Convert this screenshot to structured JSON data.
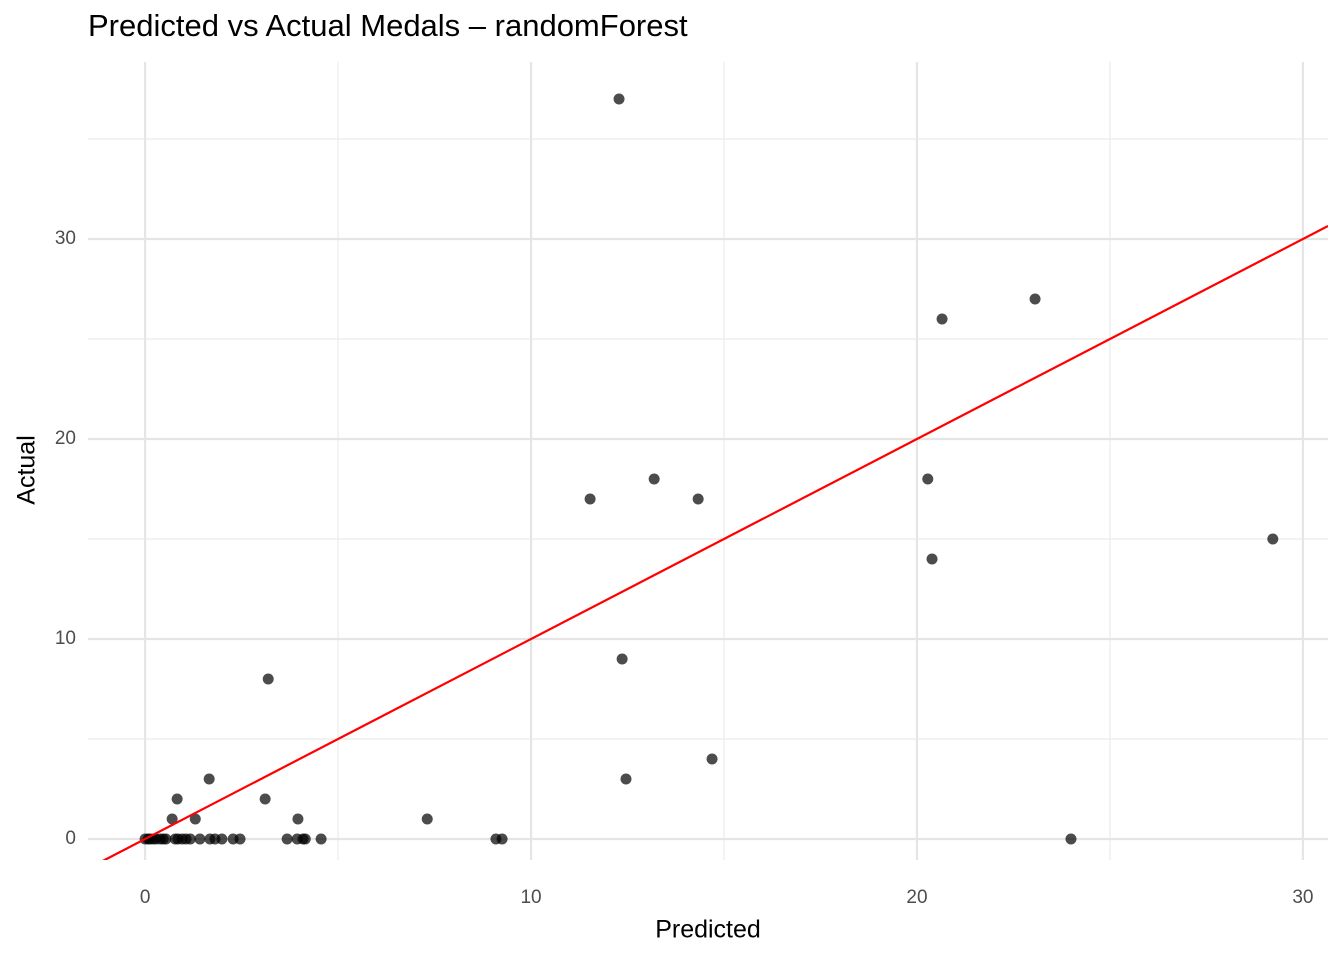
{
  "chart_data": {
    "type": "scatter",
    "title": "Predicted vs Actual Medals – randomForest",
    "x_label": "Predicted",
    "y_label": "Actual",
    "x": [
      12.28,
      23.06,
      20.65,
      13.19,
      11.53,
      14.33,
      20.28,
      20.39,
      29.22,
      12.36,
      3.19,
      14.69,
      12.46,
      1.66,
      3.11,
      0.83,
      0.7,
      1.3,
      3.96,
      7.31,
      0,
      0.08,
      0.13,
      0.21,
      0.28,
      0.39,
      0.47,
      0.54,
      0.78,
      0.85,
      0.96,
      1.06,
      1.17,
      1.42,
      1.68,
      1.81,
      1.99,
      2.28,
      2.46,
      3.68,
      3.94,
      4.09,
      4.15,
      4.56,
      9.09,
      9.25,
      23.99
    ],
    "values": [
      37,
      27,
      26,
      18,
      17,
      17,
      18,
      14,
      15,
      9,
      8,
      4,
      3,
      3,
      2,
      2,
      1,
      1,
      1,
      1,
      0,
      0,
      0,
      0,
      0,
      0,
      0,
      0,
      0,
      0,
      0,
      0,
      0,
      0,
      0,
      0,
      0,
      0,
      0,
      0,
      0,
      0,
      0,
      0,
      0,
      0,
      0
    ],
    "color": "#000000",
    "opacity": 0.7,
    "reference_line": {
      "slope": 1,
      "intercept": 0,
      "color": "#ff0000"
    },
    "xlim": [
      -1.48,
      30.65
    ],
    "ylim": [
      -1.05,
      38.85
    ],
    "xticks": [
      0,
      10,
      20,
      30
    ],
    "yticks": [
      0,
      10,
      20,
      30
    ],
    "grid": true,
    "minor_grid": true
  }
}
